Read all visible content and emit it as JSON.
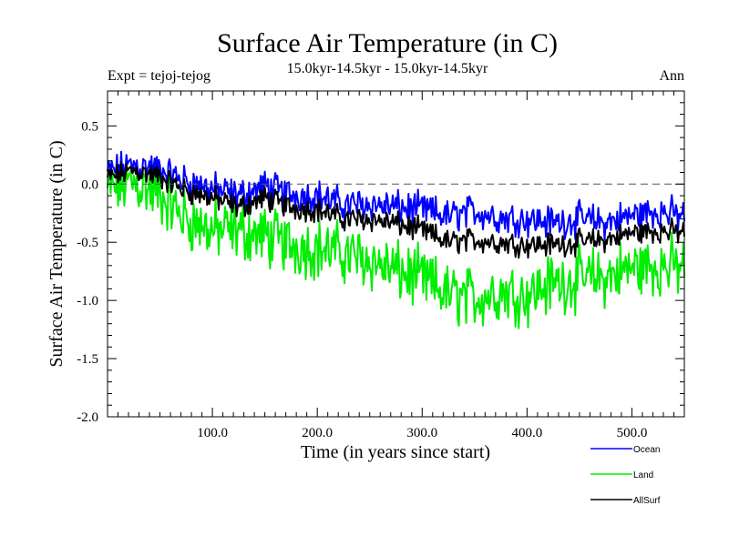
{
  "chart_data": {
    "type": "line",
    "title": "Surface Air Temperature (in C)",
    "subtitle_left": "Expt = tejoj-tejog",
    "subtitle_center": "15.0kyr-14.5kyr - 15.0kyr-14.5kyr",
    "subtitle_right": "Ann",
    "xlabel": "Time (in years since start)",
    "ylabel": "Surface Air Temperature (in C)",
    "xlim": [
      0,
      550
    ],
    "ylim": [
      -2.0,
      0.8
    ],
    "x_ticks": [
      100,
      200,
      300,
      400,
      500
    ],
    "x_tick_labels": [
      "100.0",
      "200.0",
      "300.0",
      "400.0",
      "500.0"
    ],
    "y_ticks": [
      -2.0,
      -1.5,
      -1.0,
      -0.5,
      0.0,
      0.5
    ],
    "y_tick_labels": [
      "-2.0",
      "-1.5",
      "-1.0",
      "-0.5",
      "0.0",
      "0.5"
    ],
    "reference_line": {
      "y": 0.0,
      "style": "dashed",
      "color": "#555555"
    },
    "x": [
      0,
      25,
      50,
      75,
      100,
      125,
      150,
      175,
      200,
      225,
      250,
      275,
      300,
      325,
      350,
      375,
      400,
      425,
      450,
      475,
      500,
      525,
      550
    ],
    "series": [
      {
        "name": "Ocean",
        "color": "#0000ff",
        "noise": 0.11,
        "values": [
          0.1,
          0.17,
          0.12,
          0.02,
          -0.04,
          -0.1,
          -0.02,
          -0.09,
          -0.1,
          -0.18,
          -0.17,
          -0.2,
          -0.22,
          -0.28,
          -0.23,
          -0.29,
          -0.3,
          -0.33,
          -0.3,
          -0.33,
          -0.27,
          -0.23,
          -0.28
        ]
      },
      {
        "name": "Land",
        "color": "#00ee00",
        "noise": 0.2,
        "values": [
          -0.05,
          0.02,
          -0.1,
          -0.3,
          -0.4,
          -0.4,
          -0.45,
          -0.52,
          -0.55,
          -0.6,
          -0.65,
          -0.75,
          -0.82,
          -0.95,
          -0.98,
          -0.92,
          -0.95,
          -0.85,
          -0.82,
          -0.8,
          -0.72,
          -0.7,
          -0.72
        ]
      },
      {
        "name": "AllSurf",
        "color": "#000000",
        "noise": 0.08,
        "values": [
          0.05,
          0.12,
          0.06,
          -0.06,
          -0.12,
          -0.2,
          -0.12,
          -0.2,
          -0.22,
          -0.3,
          -0.3,
          -0.34,
          -0.4,
          -0.5,
          -0.48,
          -0.5,
          -0.52,
          -0.52,
          -0.5,
          -0.48,
          -0.42,
          -0.4,
          -0.42
        ]
      }
    ],
    "legend": [
      {
        "label": "Ocean",
        "color": "#0000ff"
      },
      {
        "label": "Land",
        "color": "#00ee00"
      },
      {
        "label": "AllSurf",
        "color": "#000000"
      }
    ],
    "legend_position": "bottom-right"
  }
}
